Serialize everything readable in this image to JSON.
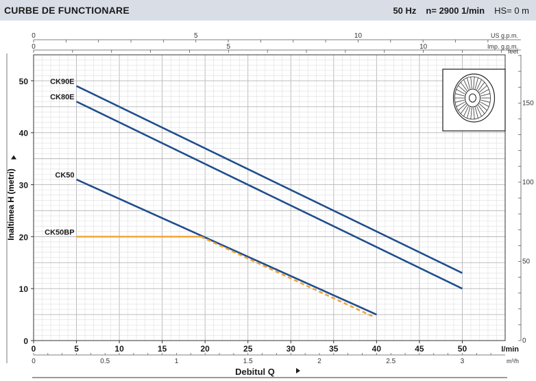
{
  "header": {
    "title": "CURBE DE FUNCTIONARE",
    "frequency": "50 Hz",
    "speed": "n= 2900  1/min",
    "hs": "HS= 0 m"
  },
  "chart_data": {
    "type": "line",
    "ylabel": "Inaltimea  H  (metri)",
    "xlabel": "Debitul  Q",
    "grid": true,
    "x_primary": {
      "unit": "l/min",
      "lim": [
        0,
        55
      ],
      "ticks": [
        0,
        5,
        10,
        15,
        20,
        25,
        30,
        35,
        40,
        45,
        50
      ]
    },
    "y_primary": {
      "unit": "m",
      "lim": [
        0,
        55
      ],
      "ticks": [
        0,
        10,
        20,
        30,
        40,
        50
      ]
    },
    "x_bottom_secondary": {
      "unit": "m³/h",
      "ticks": [
        0,
        0.5,
        1,
        1.5,
        2,
        2.5,
        3
      ],
      "tick_labels": [
        "0",
        "0.5",
        "1",
        "1.5",
        "2",
        "2.5",
        "3"
      ]
    },
    "x_top_us": {
      "unit": "US g.p.m.",
      "ticks": [
        0,
        5,
        10
      ]
    },
    "x_top_imp": {
      "unit": "Imp. g.p.m.",
      "ticks": [
        0,
        5,
        10
      ]
    },
    "y_secondary": {
      "unit": "feet",
      "ticks": [
        0,
        50,
        100,
        150
      ]
    },
    "series": [
      {
        "name": "CK90E",
        "color": "#1f4e8c",
        "dashed": false,
        "points": [
          [
            5,
            49
          ],
          [
            50,
            13
          ]
        ]
      },
      {
        "name": "CK80E",
        "color": "#1f4e8c",
        "dashed": false,
        "points": [
          [
            5,
            46
          ],
          [
            50,
            10
          ]
        ]
      },
      {
        "name": "CK50",
        "color": "#1f4e8c",
        "dashed": false,
        "points": [
          [
            5,
            31
          ],
          [
            40,
            5
          ]
        ]
      },
      {
        "name": "CK50BP",
        "color": "#f0a43c",
        "dashed": false,
        "points": [
          [
            5,
            20
          ],
          [
            19.5,
            20
          ]
        ]
      },
      {
        "name": "",
        "color": "#f0a43c",
        "dashed": true,
        "points": [
          [
            19.5,
            20
          ],
          [
            39.5,
            4.7
          ]
        ]
      }
    ]
  }
}
